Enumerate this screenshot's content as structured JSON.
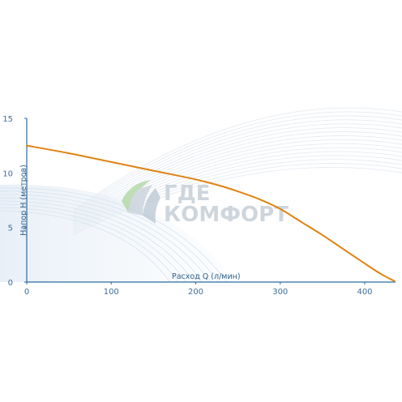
{
  "watermark": {
    "line1": "ГДЕ",
    "line2": "КОМФОРТ"
  },
  "chart_data": {
    "type": "line",
    "title": "",
    "xlabel": "Расход Q (л/мин)",
    "ylabel": "Напор H (метров)",
    "xlim": [
      0,
      440
    ],
    "ylim": [
      0,
      15
    ],
    "xticks": [
      0,
      100,
      200,
      300,
      400
    ],
    "yticks": [
      0,
      5,
      10,
      15
    ],
    "grid": false,
    "colors": {
      "curve": "#e0820f",
      "axis": "#2c6aa0",
      "text": "#3d6f9c"
    },
    "series": [
      {
        "x": [
          0,
          50,
          100,
          150,
          200,
          230,
          250,
          275,
          300,
          325,
          350,
          375,
          400,
          420,
          435
        ],
        "y": [
          12.5,
          11.8,
          11.0,
          10.2,
          9.4,
          8.8,
          8.3,
          7.6,
          6.7,
          5.5,
          4.3,
          3.0,
          1.7,
          0.7,
          0.1
        ]
      }
    ]
  }
}
